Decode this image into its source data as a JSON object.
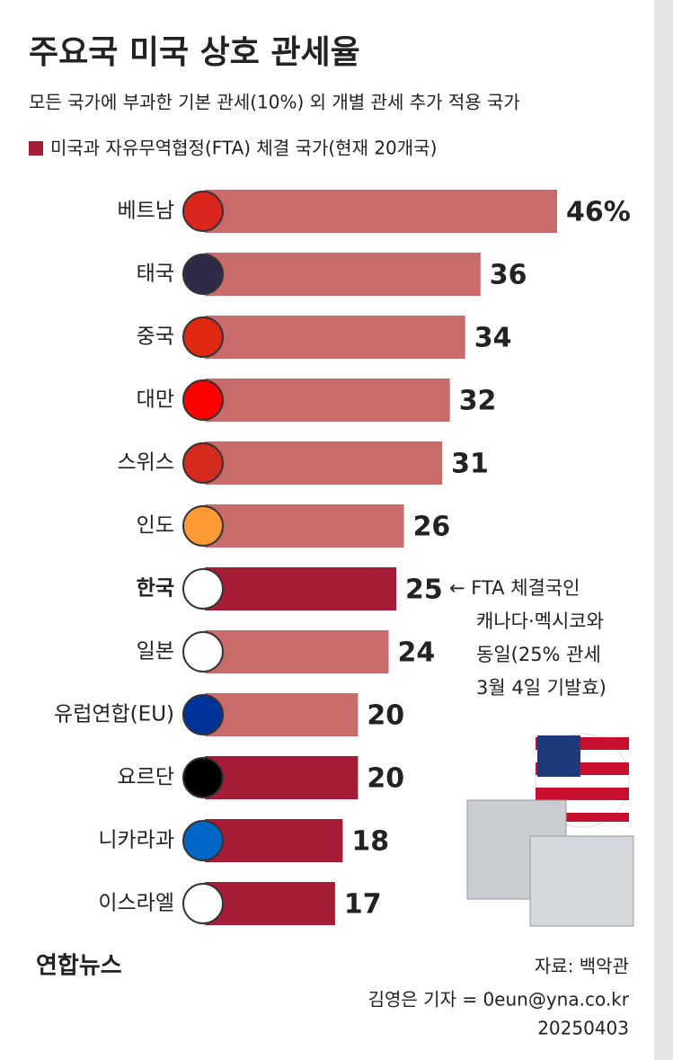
{
  "chart_data": {
    "type": "bar",
    "orientation": "horizontal",
    "title": "주요국 미국 상호 관세율",
    "subtitle": "모든 국가에 부과한 기본 관세(10%) 외 개별 관세 추가 적용 국가",
    "legend": {
      "label": "미국과 자유무역협정(FTA) 체결 국가(현재 20개국)",
      "color": "#a51c36"
    },
    "categories": [
      "베트남",
      "태국",
      "중국",
      "대만",
      "스위스",
      "인도",
      "한국",
      "일본",
      "유럽연합(EU)",
      "요르단",
      "니카라과",
      "이스라엘"
    ],
    "values": [
      46,
      36,
      34,
      32,
      31,
      26,
      25,
      24,
      20,
      20,
      18,
      17
    ],
    "value_labels": [
      "46%",
      "36",
      "34",
      "32",
      "31",
      "26",
      "25",
      "24",
      "20",
      "20",
      "18",
      "17"
    ],
    "colors": [
      "#c96b6b",
      "#c96b6b",
      "#c96b6b",
      "#c96b6b",
      "#c96b6b",
      "#c96b6b",
      "#a51c36",
      "#c96b6b",
      "#c96b6b",
      "#a51c36",
      "#a51c36",
      "#a51c36"
    ],
    "xlim": [
      0,
      46
    ],
    "annotation": [
      "← FTA 체결국인",
      "캐나다·멕시코와",
      "동일(25% 관세",
      "3월 4일 기발효)"
    ],
    "source": "자료: 백악관",
    "credit": "김영은 기자 = 0eun@yna.co.kr",
    "date": "20250403",
    "logo": "연합뉴스"
  }
}
